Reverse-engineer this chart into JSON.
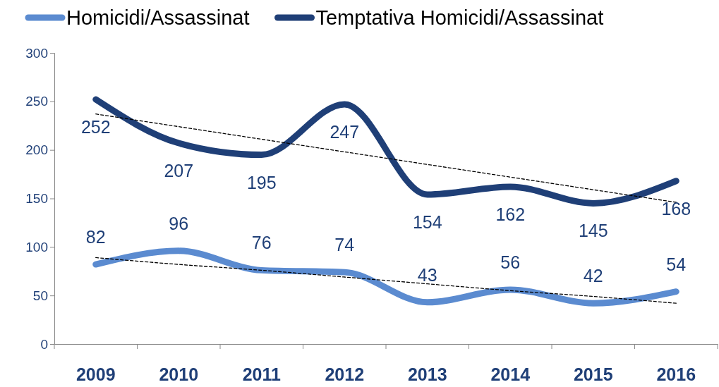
{
  "chart_data": {
    "type": "line",
    "categories": [
      "2009",
      "2010",
      "2011",
      "2012",
      "2013",
      "2014",
      "2015",
      "2016"
    ],
    "series": [
      {
        "name": "Homicidi/Assassinat",
        "color": "#5b8bd0",
        "values": [
          82,
          96,
          76,
          74,
          43,
          56,
          42,
          54
        ],
        "value_labels": [
          "82",
          "96",
          "76",
          "74",
          "43",
          "56",
          "42",
          "54"
        ]
      },
      {
        "name": "Temptativa Homicidi/Assassinat",
        "color": "#1f3f77",
        "values": [
          252,
          207,
          195,
          247,
          154,
          162,
          145,
          168
        ],
        "value_labels": [
          "252",
          "207",
          "195",
          "247",
          "154",
          "162",
          "145",
          "168"
        ]
      },
      {
        "type": "line",
        "color": "#000000",
        "line_style": "dashed",
        "values": [
          89,
          82,
          76,
          69,
          62,
          55,
          49,
          42
        ]
      },
      {
        "type": "line",
        "color": "#000000",
        "line_style": "dashed",
        "values": [
          237,
          224,
          211,
          198,
          185,
          172,
          159,
          146
        ]
      }
    ],
    "ylim": [
      0,
      300
    ],
    "yticks": [
      0,
      50,
      100,
      150,
      200,
      250,
      300
    ],
    "grid": false,
    "legend": "top",
    "marker": "none"
  }
}
